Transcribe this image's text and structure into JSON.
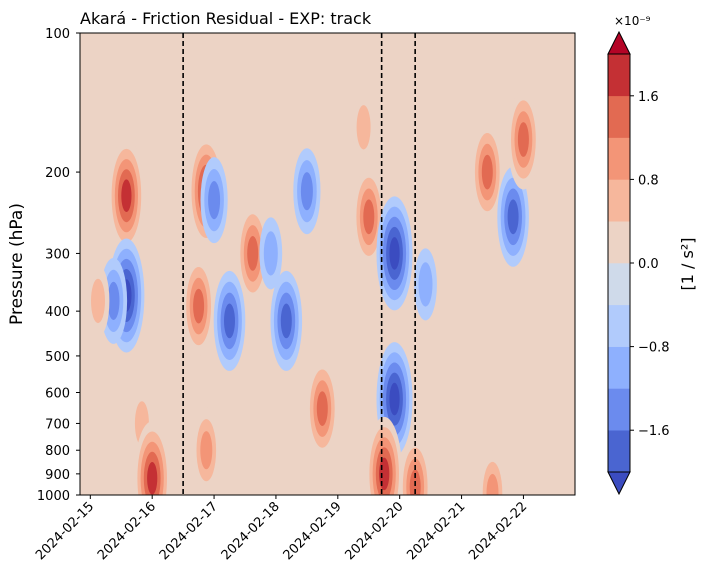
{
  "chart_data": {
    "type": "heatmap",
    "title": "Akará - Friction Residual - EXP: track",
    "ylabel": "Pressure (hPa)",
    "xlabel": "",
    "y_scale": "log",
    "y_inverted": true,
    "ylim": [
      1000,
      100
    ],
    "y_ticks": [
      100,
      200,
      300,
      400,
      500,
      600,
      700,
      800,
      900,
      1000
    ],
    "y_tick_labels": [
      "100",
      "200",
      "300",
      "400",
      "500",
      "600",
      "700",
      "800",
      "900",
      "1000"
    ],
    "xlim": [
      "2024-02-14 20:00",
      "2024-02-22 20:00"
    ],
    "x_ticks": [
      "2024-02-15",
      "2024-02-16",
      "2024-02-17",
      "2024-02-18",
      "2024-02-19",
      "2024-02-20",
      "2024-02-21",
      "2024-02-22"
    ],
    "vertical_lines": [
      "2024-02-16 12:00",
      "2024-02-19 17:00",
      "2024-02-20 06:00"
    ],
    "vertical_line_style": "dashed",
    "colormap": "coolwarm",
    "colorbar": {
      "label": "[1 / s²]",
      "exponent_label": "×10⁻⁹",
      "scale_factor": 1e-09,
      "levels": [
        -2.0,
        -1.6,
        -1.2,
        -0.8,
        -0.4,
        0.0,
        0.4,
        0.8,
        1.2,
        1.6,
        2.0
      ],
      "tick_values": [
        -1.6,
        -0.8,
        0.0,
        0.8,
        1.6
      ],
      "tick_labels": [
        "−1.6",
        "−0.8",
        "0.0",
        "0.8",
        "1.6"
      ],
      "extend": "both",
      "colors": [
        "#4a65d1",
        "#6b8bee",
        "#8eb0fe",
        "#b1cbfc",
        "#cfdaea",
        "#ecd3c5",
        "#f6b79c",
        "#f39577",
        "#e26a52",
        "#c43034"
      ],
      "under_color": "#3b4cc0",
      "over_color": "#b40426"
    },
    "features": [
      {
        "time": "2024-02-15 14:00",
        "pressure": 225,
        "value": 2.0
      },
      {
        "time": "2024-02-15 14:00",
        "pressure": 370,
        "value": -1.8
      },
      {
        "time": "2024-02-15 09:00",
        "pressure": 380,
        "value": -1.0
      },
      {
        "time": "2024-02-15 03:00",
        "pressure": 380,
        "value": 0.8
      },
      {
        "time": "2024-02-15 20:00",
        "pressure": 700,
        "value": 0.6
      },
      {
        "time": "2024-02-16 00:00",
        "pressure": 920,
        "value": 1.8
      },
      {
        "time": "2024-02-16 21:00",
        "pressure": 220,
        "value": 2.0
      },
      {
        "time": "2024-02-16 18:00",
        "pressure": 390,
        "value": 1.6
      },
      {
        "time": "2024-02-16 21:00",
        "pressure": 800,
        "value": 1.2
      },
      {
        "time": "2024-02-17 06:00",
        "pressure": 420,
        "value": -1.5
      },
      {
        "time": "2024-02-17 00:00",
        "pressure": 230,
        "value": -1.2
      },
      {
        "time": "2024-02-17 15:00",
        "pressure": 300,
        "value": 1.5
      },
      {
        "time": "2024-02-17 22:00",
        "pressure": 300,
        "value": -0.8
      },
      {
        "time": "2024-02-18 04:00",
        "pressure": 420,
        "value": -1.3
      },
      {
        "time": "2024-02-18 18:00",
        "pressure": 650,
        "value": 1.3
      },
      {
        "time": "2024-02-18 12:00",
        "pressure": 220,
        "value": -0.9
      },
      {
        "time": "2024-02-19 12:00",
        "pressure": 250,
        "value": 1.4
      },
      {
        "time": "2024-02-19 10:00",
        "pressure": 160,
        "value": 0.7
      },
      {
        "time": "2024-02-19 22:00",
        "pressure": 300,
        "value": -2.0
      },
      {
        "time": "2024-02-19 22:00",
        "pressure": 620,
        "value": -2.0
      },
      {
        "time": "2024-02-19 18:00",
        "pressure": 900,
        "value": 2.0
      },
      {
        "time": "2024-02-20 10:00",
        "pressure": 350,
        "value": -0.7
      },
      {
        "time": "2024-02-21 10:00",
        "pressure": 200,
        "value": 1.3
      },
      {
        "time": "2024-02-21 20:00",
        "pressure": 250,
        "value": -1.4
      },
      {
        "time": "2024-02-22 00:00",
        "pressure": 170,
        "value": 1.3
      },
      {
        "time": "2024-02-20 06:00",
        "pressure": 960,
        "value": 1.6
      },
      {
        "time": "2024-02-21 12:00",
        "pressure": 990,
        "value": 1.0
      }
    ]
  }
}
